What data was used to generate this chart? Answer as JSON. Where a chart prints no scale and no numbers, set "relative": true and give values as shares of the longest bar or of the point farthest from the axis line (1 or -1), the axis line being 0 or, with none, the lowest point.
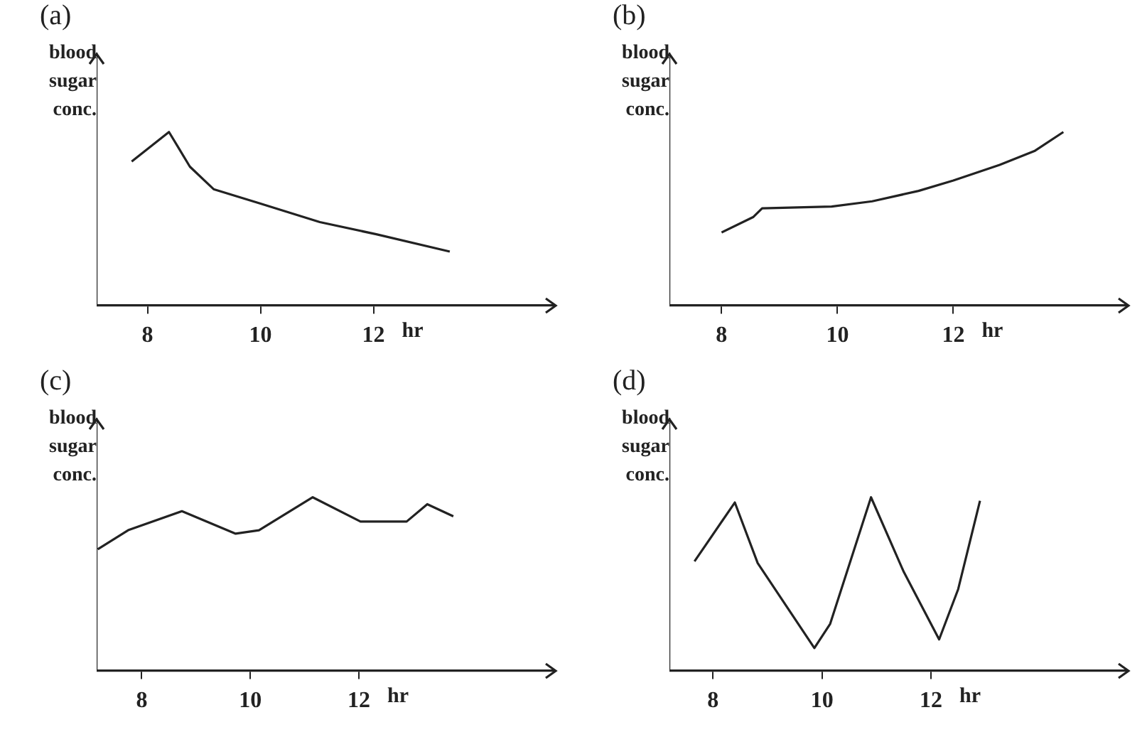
{
  "chart_data": [
    {
      "type": "line",
      "title": "(a)",
      "ylabel": "blood sugar conc.",
      "xlabel": "hr",
      "relative": true,
      "color": "#222222",
      "marker": "none",
      "grid": false,
      "tick_labels": "x",
      "xlim": [
        7.1,
        15.2
      ],
      "xticks": [
        8,
        10,
        12
      ],
      "x": [
        7.72,
        8.38,
        8.75,
        9.17,
        9.97,
        11.05,
        12.05,
        13.35
      ],
      "values": [
        0.83,
        1,
        0.8,
        0.67,
        0.59,
        0.48,
        0.41,
        0.31
      ]
    },
    {
      "type": "line",
      "title": "(b)",
      "ylabel": "blood sugar conc.",
      "xlabel": "hr",
      "relative": true,
      "color": "#222222",
      "marker": "none",
      "grid": false,
      "tick_labels": "x",
      "xlim": [
        7.1,
        15
      ],
      "xticks": [
        8,
        10,
        12
      ],
      "x": [
        8.0,
        8.55,
        8.7,
        9.9,
        10.6,
        11.4,
        12.0,
        12.8,
        13.4,
        13.9
      ],
      "values": [
        0.42,
        0.51,
        0.56,
        0.57,
        0.6,
        0.66,
        0.72,
        0.81,
        0.89,
        1
      ]
    },
    {
      "type": "line",
      "title": "(c)",
      "ylabel": "blood sugar conc.",
      "xlabel": "hr",
      "relative": true,
      "color": "#222222",
      "marker": "none",
      "grid": false,
      "tick_labels": "x",
      "xlim": [
        7.17,
        15.6
      ],
      "xticks": [
        8,
        10,
        12
      ],
      "x": [
        7.19,
        7.75,
        8.74,
        9.73,
        10.16,
        11.15,
        12.03,
        12.88,
        13.26,
        13.74
      ],
      "values": [
        0.7,
        0.81,
        0.92,
        0.79,
        0.81,
        1,
        0.86,
        0.86,
        0.96,
        0.89
      ]
    },
    {
      "type": "line",
      "title": "(d)",
      "ylabel": "blood sugar conc.",
      "xlabel": "hr",
      "relative": true,
      "color": "#222222",
      "marker": "none",
      "grid": false,
      "tick_labels": "x",
      "xlim": [
        7.2,
        15.6
      ],
      "xticks": [
        8,
        10,
        12
      ],
      "x": [
        7.66,
        8.4,
        8.82,
        9.86,
        10.15,
        10.9,
        11.5,
        12.15,
        12.5,
        12.9
      ],
      "values": [
        0.63,
        0.97,
        0.62,
        0.13,
        0.27,
        1,
        0.57,
        0.18,
        0.47,
        0.98
      ]
    }
  ]
}
